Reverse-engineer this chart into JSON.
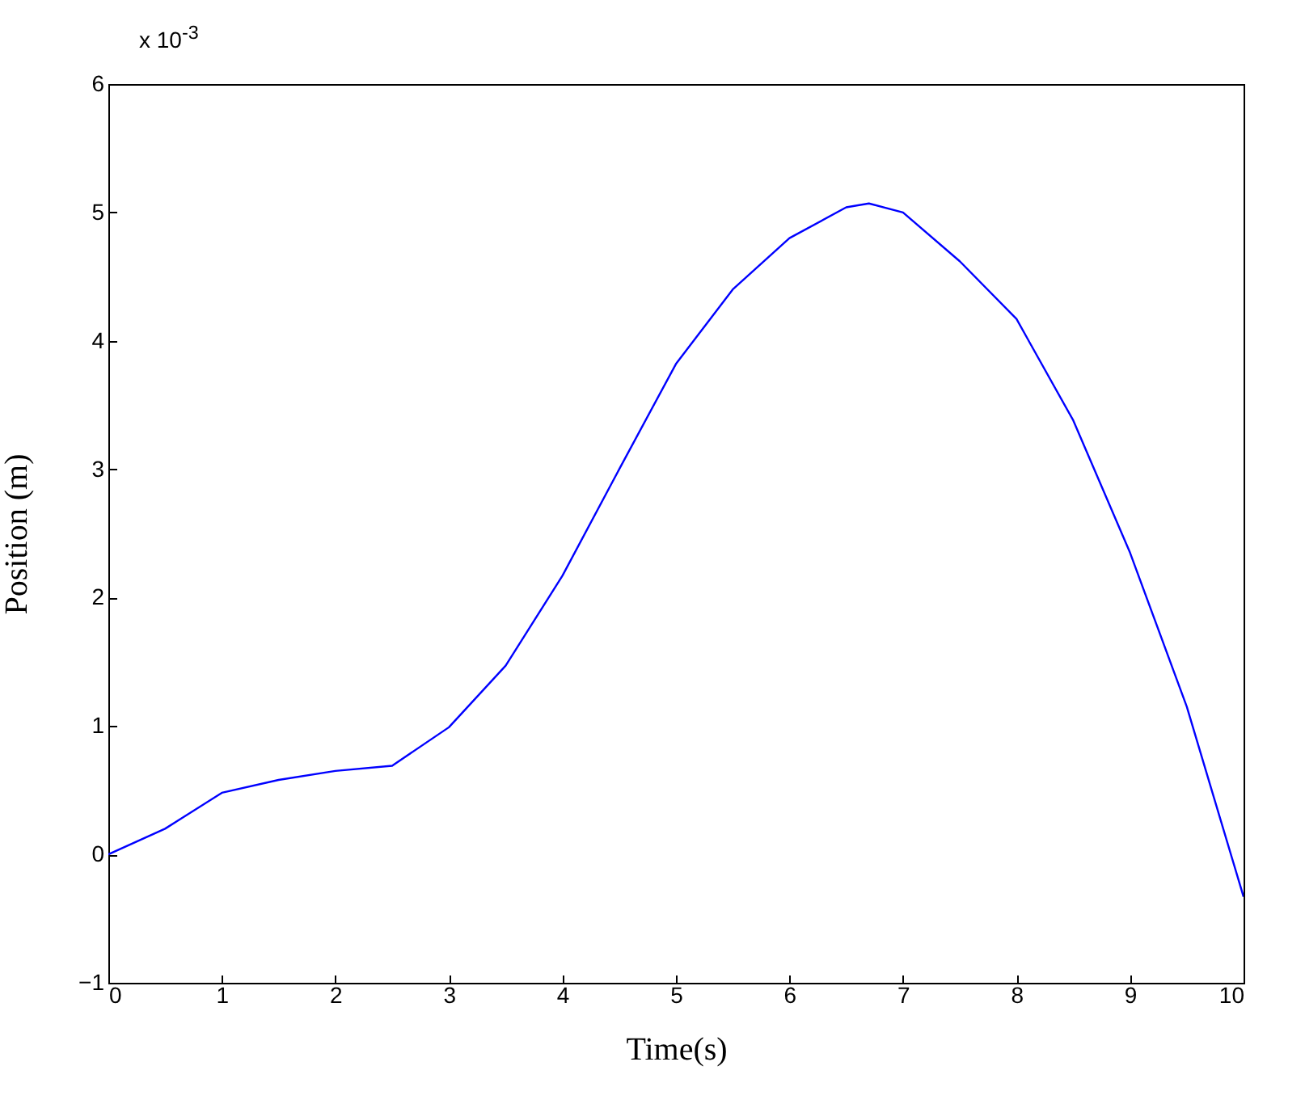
{
  "chart_data": {
    "type": "line",
    "xlabel": "Time(s)",
    "ylabel": "Position (m)",
    "annotations": [
      "x 10$^{-3}$"
    ],
    "x": [
      0,
      0.5,
      1,
      1.5,
      2,
      2.5,
      3,
      3.5,
      4,
      4.5,
      5,
      5.5,
      6,
      6.5,
      6.7,
      7,
      7.5,
      8,
      8.5,
      9,
      9.5,
      10
    ],
    "series": [
      {
        "color": "#0000ff",
        "values": [
          0,
          0.2,
          0.48,
          0.58,
          0.65,
          0.69,
          0.99,
          1.47,
          2.17,
          3.0,
          3.82,
          4.4,
          4.8,
          5.04,
          5.07,
          5.0,
          4.62,
          4.17,
          3.38,
          2.35,
          1.15,
          -0.33
        ]
      }
    ],
    "xlim": [
      0,
      10
    ],
    "xticks": [
      0,
      1,
      2,
      3,
      4,
      5,
      6,
      7,
      8,
      9,
      10
    ],
    "ylim": [
      -1,
      6
    ],
    "yticks": [
      -1,
      0,
      1,
      2,
      3,
      4,
      5,
      6
    ],
    "grid": false,
    "legend": false
  }
}
